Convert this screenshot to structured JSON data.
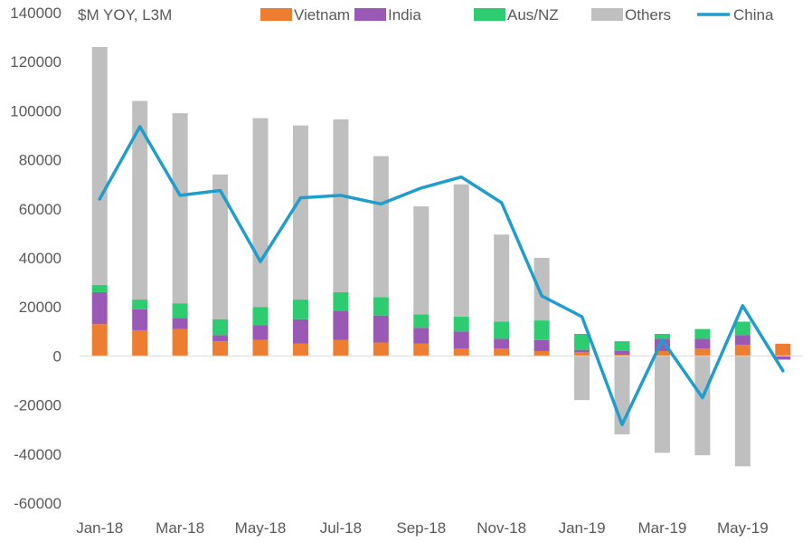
{
  "chart_data": {
    "type": "bar",
    "unit_label": "$M YOY, L3M",
    "categories": [
      "Jan-18",
      "Feb-18",
      "Mar-18",
      "Apr-18",
      "May-18",
      "Jun-18",
      "Jul-18",
      "Aug-18",
      "Sep-18",
      "Oct-18",
      "Nov-18",
      "Dec-18",
      "Jan-19",
      "Feb-19",
      "Mar-19",
      "Apr-19",
      "May-19",
      "Jun-19"
    ],
    "x_tick_labels": [
      "Jan-18",
      "Mar-18",
      "May-18",
      "Jul-18",
      "Sep-18",
      "Nov-18",
      "Jan-19",
      "Mar-19",
      "May-19"
    ],
    "ylim": [
      -60000,
      140000
    ],
    "y_ticks": [
      140000,
      120000,
      100000,
      80000,
      60000,
      40000,
      20000,
      0,
      -20000,
      -40000,
      -60000
    ],
    "stacked_series": [
      {
        "name": "Vietnam",
        "color": "#ED7D31",
        "values": [
          13000,
          10500,
          11000,
          6000,
          6500,
          5000,
          6500,
          5500,
          5000,
          3000,
          3000,
          2000,
          1500,
          500,
          2000,
          3000,
          4500,
          5000
        ]
      },
      {
        "name": "India",
        "color": "#9B59B6",
        "values": [
          13000,
          8500,
          4500,
          2500,
          6000,
          10000,
          12000,
          11000,
          6500,
          7000,
          4000,
          4500,
          1000,
          1500,
          5000,
          4000,
          4000,
          -1500
        ]
      },
      {
        "name": "Aus/NZ",
        "color": "#2ECC71",
        "values": [
          3000,
          4000,
          6000,
          6500,
          7500,
          8000,
          7500,
          7500,
          5500,
          6000,
          7000,
          8000,
          6500,
          4000,
          2000,
          4000,
          5500,
          0
        ]
      },
      {
        "name": "Others",
        "color": "#BFBFBF",
        "values": [
          97000,
          81000,
          77500,
          59000,
          77000,
          71000,
          70500,
          57500,
          44000,
          54000,
          35500,
          25500,
          -18000,
          -32000,
          -39500,
          -40500,
          -45000,
          0
        ]
      }
    ],
    "line_series": {
      "name": "China",
      "color": "#1F9DCC",
      "values": [
        64000,
        93500,
        65500,
        67500,
        38500,
        64500,
        65500,
        62000,
        68500,
        73000,
        62500,
        24500,
        16000,
        -28000,
        6500,
        -17000,
        20500,
        -6000
      ]
    },
    "legend": [
      "Vietnam",
      "India",
      "Aus/NZ",
      "Others",
      "China"
    ],
    "legend_position": "top",
    "grid": false
  }
}
